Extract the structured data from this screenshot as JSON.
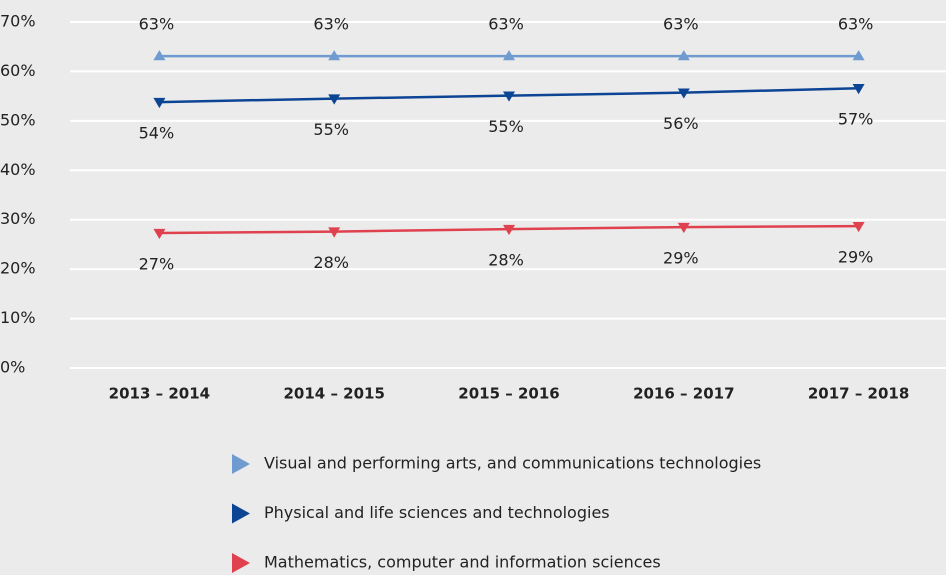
{
  "chart_data": {
    "type": "line",
    "categories": [
      "2013 – 2014",
      "2014 – 2015",
      "2015 – 2016",
      "2016 – 2017",
      "2017 – 2018"
    ],
    "series": [
      {
        "name": "Visual and performing arts, and communications technologies",
        "color": "#6f9bd1",
        "marker": "triangle-up",
        "label_position": "above",
        "values": [
          63.1,
          63.1,
          63.1,
          63.1,
          63.1
        ],
        "value_labels": [
          "63%",
          "63%",
          "63%",
          "63%",
          "63%"
        ]
      },
      {
        "name": "Physical and life sciences and technologies",
        "color": "#0d4595",
        "marker": "triangle-down",
        "label_position": "below",
        "values": [
          53.8,
          54.5,
          55.1,
          55.7,
          56.6
        ],
        "value_labels": [
          "54%",
          "55%",
          "55%",
          "56%",
          "57%"
        ]
      },
      {
        "name": "Mathematics, computer and information sciences",
        "color": "#e0414f",
        "marker": "triangle-down",
        "label_position": "below",
        "values": [
          27.3,
          27.6,
          28.1,
          28.5,
          28.7
        ],
        "value_labels": [
          "27%",
          "28%",
          "28%",
          "29%",
          "29%"
        ]
      }
    ],
    "ylim": [
      0,
      70
    ],
    "yticks": [
      {
        "value": 0,
        "label": "0%"
      },
      {
        "value": 10,
        "label": "10%"
      },
      {
        "value": 20,
        "label": "20%"
      },
      {
        "value": 30,
        "label": "30%"
      },
      {
        "value": 40,
        "label": "40%"
      },
      {
        "value": 50,
        "label": "50%"
      },
      {
        "value": 60,
        "label": "60%"
      },
      {
        "value": 70,
        "label": "70%"
      }
    ],
    "grid": true,
    "legend": "bottom"
  }
}
